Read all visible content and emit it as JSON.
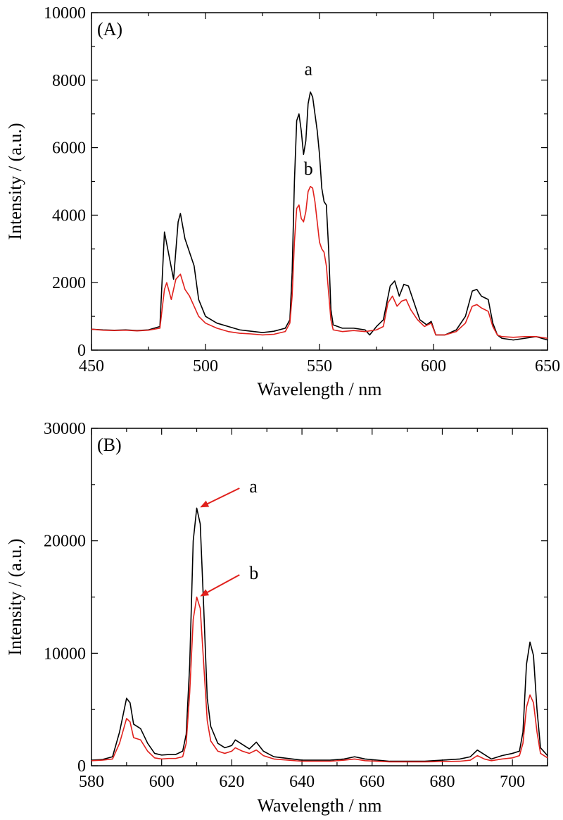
{
  "chart_data": [
    {
      "type": "line",
      "panel_label": "(A)",
      "xlabel": "Wavelength / nm",
      "ylabel": "Intensity / (a.u.)",
      "xlim": [
        450,
        650
      ],
      "ylim": [
        0,
        10000
      ],
      "xticks": [
        450,
        500,
        550,
        600,
        650
      ],
      "yticks": [
        0,
        2000,
        4000,
        6000,
        8000,
        10000
      ],
      "grid": false,
      "series": [
        {
          "name": "a",
          "color": "#000000",
          "points": [
            [
              450,
              620
            ],
            [
              455,
              600
            ],
            [
              460,
              590
            ],
            [
              465,
              600
            ],
            [
              470,
              580
            ],
            [
              475,
              600
            ],
            [
              480,
              700
            ],
            [
              482,
              3500
            ],
            [
              484,
              2800
            ],
            [
              486,
              2100
            ],
            [
              488,
              3800
            ],
            [
              489,
              4050
            ],
            [
              491,
              3300
            ],
            [
              493,
              2900
            ],
            [
              495,
              2500
            ],
            [
              497,
              1500
            ],
            [
              500,
              1000
            ],
            [
              505,
              800
            ],
            [
              510,
              700
            ],
            [
              515,
              600
            ],
            [
              520,
              560
            ],
            [
              525,
              520
            ],
            [
              530,
              560
            ],
            [
              535,
              650
            ],
            [
              537,
              900
            ],
            [
              538,
              2300
            ],
            [
              539,
              5000
            ],
            [
              540,
              6800
            ],
            [
              541,
              7000
            ],
            [
              542,
              6500
            ],
            [
              543,
              5800
            ],
            [
              544,
              6200
            ],
            [
              545,
              7300
            ],
            [
              546,
              7650
            ],
            [
              547,
              7500
            ],
            [
              548,
              7000
            ],
            [
              549,
              6500
            ],
            [
              550,
              5800
            ],
            [
              551,
              4800
            ],
            [
              552,
              4400
            ],
            [
              553,
              4300
            ],
            [
              554,
              3000
            ],
            [
              555,
              1200
            ],
            [
              556,
              750
            ],
            [
              560,
              650
            ],
            [
              565,
              650
            ],
            [
              570,
              600
            ],
            [
              572,
              450
            ],
            [
              575,
              700
            ],
            [
              578,
              900
            ],
            [
              581,
              1900
            ],
            [
              583,
              2050
            ],
            [
              585,
              1600
            ],
            [
              587,
              1950
            ],
            [
              589,
              1900
            ],
            [
              591,
              1500
            ],
            [
              594,
              900
            ],
            [
              597,
              750
            ],
            [
              599,
              850
            ],
            [
              601,
              450
            ],
            [
              605,
              450
            ],
            [
              610,
              600
            ],
            [
              614,
              1000
            ],
            [
              617,
              1750
            ],
            [
              619,
              1800
            ],
            [
              621,
              1600
            ],
            [
              624,
              1500
            ],
            [
              626,
              800
            ],
            [
              628,
              450
            ],
            [
              630,
              350
            ],
            [
              635,
              300
            ],
            [
              640,
              350
            ],
            [
              645,
              400
            ],
            [
              650,
              300
            ]
          ]
        },
        {
          "name": "b",
          "color": "#e0201c",
          "points": [
            [
              450,
              620
            ],
            [
              455,
              590
            ],
            [
              460,
              580
            ],
            [
              465,
              590
            ],
            [
              470,
              570
            ],
            [
              475,
              590
            ],
            [
              480,
              650
            ],
            [
              482,
              1800
            ],
            [
              483,
              2000
            ],
            [
              485,
              1500
            ],
            [
              487,
              2100
            ],
            [
              489,
              2250
            ],
            [
              491,
              1800
            ],
            [
              493,
              1600
            ],
            [
              495,
              1300
            ],
            [
              497,
              1000
            ],
            [
              500,
              800
            ],
            [
              505,
              650
            ],
            [
              510,
              550
            ],
            [
              515,
              500
            ],
            [
              520,
              480
            ],
            [
              525,
              450
            ],
            [
              530,
              470
            ],
            [
              535,
              550
            ],
            [
              537,
              800
            ],
            [
              538,
              1600
            ],
            [
              539,
              3200
            ],
            [
              540,
              4200
            ],
            [
              541,
              4300
            ],
            [
              542,
              3900
            ],
            [
              543,
              3800
            ],
            [
              544,
              4100
            ],
            [
              545,
              4700
            ],
            [
              546,
              4850
            ],
            [
              547,
              4800
            ],
            [
              548,
              4400
            ],
            [
              549,
              3800
            ],
            [
              550,
              3200
            ],
            [
              551,
              3000
            ],
            [
              552,
              2900
            ],
            [
              553,
              2500
            ],
            [
              554,
              1700
            ],
            [
              555,
              900
            ],
            [
              556,
              600
            ],
            [
              560,
              550
            ],
            [
              565,
              580
            ],
            [
              570,
              550
            ],
            [
              575,
              600
            ],
            [
              578,
              700
            ],
            [
              580,
              1400
            ],
            [
              582,
              1600
            ],
            [
              584,
              1300
            ],
            [
              586,
              1450
            ],
            [
              588,
              1500
            ],
            [
              590,
              1200
            ],
            [
              593,
              900
            ],
            [
              596,
              700
            ],
            [
              599,
              800
            ],
            [
              601,
              450
            ],
            [
              605,
              450
            ],
            [
              610,
              550
            ],
            [
              614,
              800
            ],
            [
              617,
              1300
            ],
            [
              619,
              1350
            ],
            [
              621,
              1250
            ],
            [
              624,
              1150
            ],
            [
              626,
              700
            ],
            [
              628,
              450
            ],
            [
              630,
              400
            ],
            [
              635,
              380
            ],
            [
              640,
              400
            ],
            [
              645,
              400
            ],
            [
              650,
              350
            ]
          ]
        }
      ],
      "annotations": [
        {
          "text": "a",
          "x": 547,
          "y": 8150
        },
        {
          "text": "b",
          "x": 547,
          "y": 5200
        }
      ]
    },
    {
      "type": "line",
      "panel_label": "(B)",
      "xlabel": "Wavelength / nm",
      "ylabel": "Intensity / (a.u.)",
      "xlim": [
        580,
        710
      ],
      "ylim": [
        0,
        30000
      ],
      "xticks": [
        580,
        600,
        620,
        640,
        660,
        680,
        700
      ],
      "yticks": [
        0,
        10000,
        20000,
        30000
      ],
      "grid": false,
      "series": [
        {
          "name": "a",
          "color": "#000000",
          "points": [
            [
              580,
              500
            ],
            [
              583,
              550
            ],
            [
              586,
              800
            ],
            [
              588,
              3000
            ],
            [
              590,
              6000
            ],
            [
              591,
              5600
            ],
            [
              592,
              3700
            ],
            [
              594,
              3300
            ],
            [
              596,
              2000
            ],
            [
              598,
              1100
            ],
            [
              600,
              950
            ],
            [
              602,
              1000
            ],
            [
              604,
              1000
            ],
            [
              606,
              1300
            ],
            [
              607,
              2800
            ],
            [
              608,
              9000
            ],
            [
              609,
              20000
            ],
            [
              610,
              22900
            ],
            [
              611,
              21500
            ],
            [
              612,
              14000
            ],
            [
              613,
              6000
            ],
            [
              614,
              3500
            ],
            [
              616,
              2000
            ],
            [
              618,
              1600
            ],
            [
              620,
              1800
            ],
            [
              621,
              2300
            ],
            [
              623,
              1900
            ],
            [
              625,
              1500
            ],
            [
              627,
              2100
            ],
            [
              629,
              1300
            ],
            [
              632,
              800
            ],
            [
              640,
              500
            ],
            [
              648,
              500
            ],
            [
              652,
              600
            ],
            [
              655,
              800
            ],
            [
              658,
              600
            ],
            [
              665,
              400
            ],
            [
              675,
              400
            ],
            [
              685,
              600
            ],
            [
              688,
              800
            ],
            [
              690,
              1400
            ],
            [
              692,
              1000
            ],
            [
              694,
              600
            ],
            [
              697,
              900
            ],
            [
              700,
              1100
            ],
            [
              702,
              1300
            ],
            [
              703,
              3000
            ],
            [
              704,
              9000
            ],
            [
              705,
              11000
            ],
            [
              706,
              9800
            ],
            [
              707,
              5000
            ],
            [
              708,
              1600
            ],
            [
              710,
              900
            ]
          ]
        },
        {
          "name": "b",
          "color": "#e0201c",
          "points": [
            [
              580,
              450
            ],
            [
              583,
              500
            ],
            [
              586,
              600
            ],
            [
              588,
              2000
            ],
            [
              590,
              4200
            ],
            [
              591,
              3900
            ],
            [
              592,
              2500
            ],
            [
              594,
              2300
            ],
            [
              596,
              1300
            ],
            [
              598,
              700
            ],
            [
              600,
              600
            ],
            [
              602,
              650
            ],
            [
              604,
              650
            ],
            [
              606,
              800
            ],
            [
              607,
              2000
            ],
            [
              608,
              6500
            ],
            [
              609,
              13000
            ],
            [
              610,
              15000
            ],
            [
              611,
              14000
            ],
            [
              612,
              9000
            ],
            [
              613,
              4000
            ],
            [
              614,
              2200
            ],
            [
              616,
              1300
            ],
            [
              618,
              1100
            ],
            [
              620,
              1300
            ],
            [
              621,
              1600
            ],
            [
              623,
              1300
            ],
            [
              625,
              1100
            ],
            [
              627,
              1400
            ],
            [
              629,
              900
            ],
            [
              632,
              600
            ],
            [
              640,
              400
            ],
            [
              648,
              400
            ],
            [
              652,
              500
            ],
            [
              655,
              600
            ],
            [
              658,
              450
            ],
            [
              665,
              350
            ],
            [
              675,
              350
            ],
            [
              685,
              400
            ],
            [
              688,
              500
            ],
            [
              690,
              900
            ],
            [
              692,
              600
            ],
            [
              694,
              450
            ],
            [
              697,
              600
            ],
            [
              700,
              700
            ],
            [
              702,
              900
            ],
            [
              703,
              2000
            ],
            [
              704,
              5200
            ],
            [
              705,
              6300
            ],
            [
              706,
              5600
            ],
            [
              707,
              3000
            ],
            [
              708,
              1100
            ],
            [
              710,
              700
            ]
          ]
        }
      ],
      "annotations": [
        {
          "text": "a",
          "x": 625,
          "y": 24300,
          "arrow_to": [
            610.5,
            22900
          ]
        },
        {
          "text": "b",
          "x": 625,
          "y": 16600,
          "arrow_to": [
            610.5,
            15000
          ]
        }
      ]
    }
  ]
}
